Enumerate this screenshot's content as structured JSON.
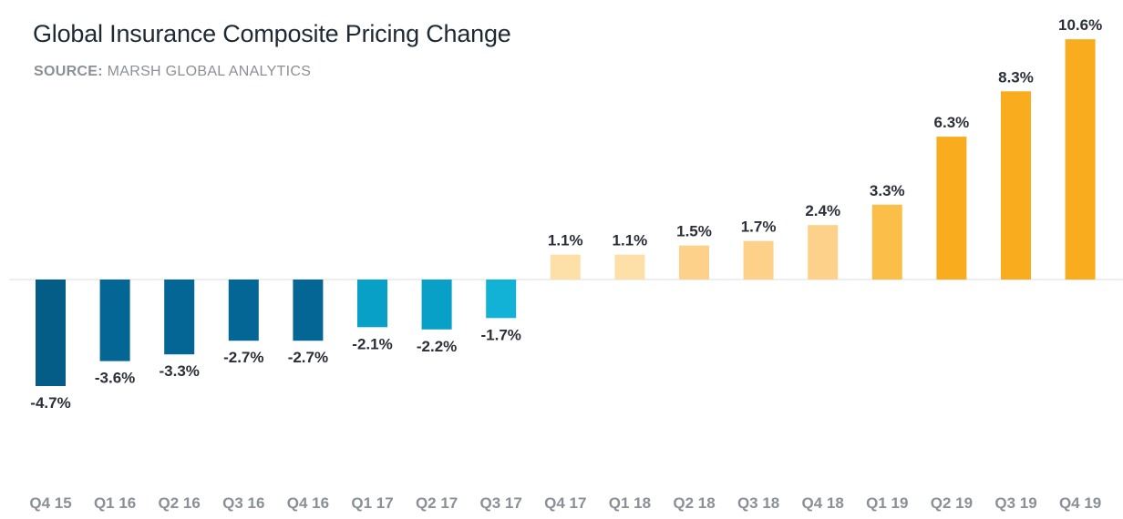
{
  "header": {
    "title": "Global Insurance Composite Pricing Change",
    "source_label": "SOURCE:",
    "source_text": " MARSH GLOBAL ANALYTICS"
  },
  "chart_data": {
    "type": "bar",
    "title": "Global Insurance Composite Pricing Change",
    "subtitle": "SOURCE: MARSH GLOBAL ANALYTICS",
    "xlabel": "",
    "ylabel": "",
    "categories": [
      "Q4 15",
      "Q1 16",
      "Q2 16",
      "Q3 16",
      "Q4 16",
      "Q1 17",
      "Q2 17",
      "Q3 17",
      "Q4 17",
      "Q1 18",
      "Q2 18",
      "Q3 18",
      "Q4 18",
      "Q1 19",
      "Q2 19",
      "Q3 19",
      "Q4 19"
    ],
    "values": [
      -4.7,
      -3.6,
      -3.3,
      -2.7,
      -2.7,
      -2.1,
      -2.2,
      -1.7,
      1.1,
      1.1,
      1.5,
      1.7,
      2.4,
      3.3,
      6.3,
      8.3,
      10.6
    ],
    "data_labels": [
      "-4.7%",
      "-3.6%",
      "-3.3%",
      "-2.7%",
      "-2.7%",
      "-2.1%",
      "-2.2%",
      "-1.7%",
      "1.1%",
      "1.1%",
      "1.5%",
      "1.7%",
      "2.4%",
      "3.3%",
      "6.3%",
      "8.3%",
      "10.6%"
    ],
    "colors": [
      "#035d87",
      "#046694",
      "#046694",
      "#046694",
      "#046694",
      "#08a0c6",
      "#08a0c6",
      "#12b2d6",
      "#fde0a8",
      "#fde0a8",
      "#fdd18a",
      "#fdd18a",
      "#fdd18a",
      "#fbbe49",
      "#f9ad1e",
      "#f9ad1e",
      "#f9ad1e"
    ],
    "ylim": [
      -4.7,
      10.6
    ],
    "grid": false,
    "legend": "none"
  }
}
